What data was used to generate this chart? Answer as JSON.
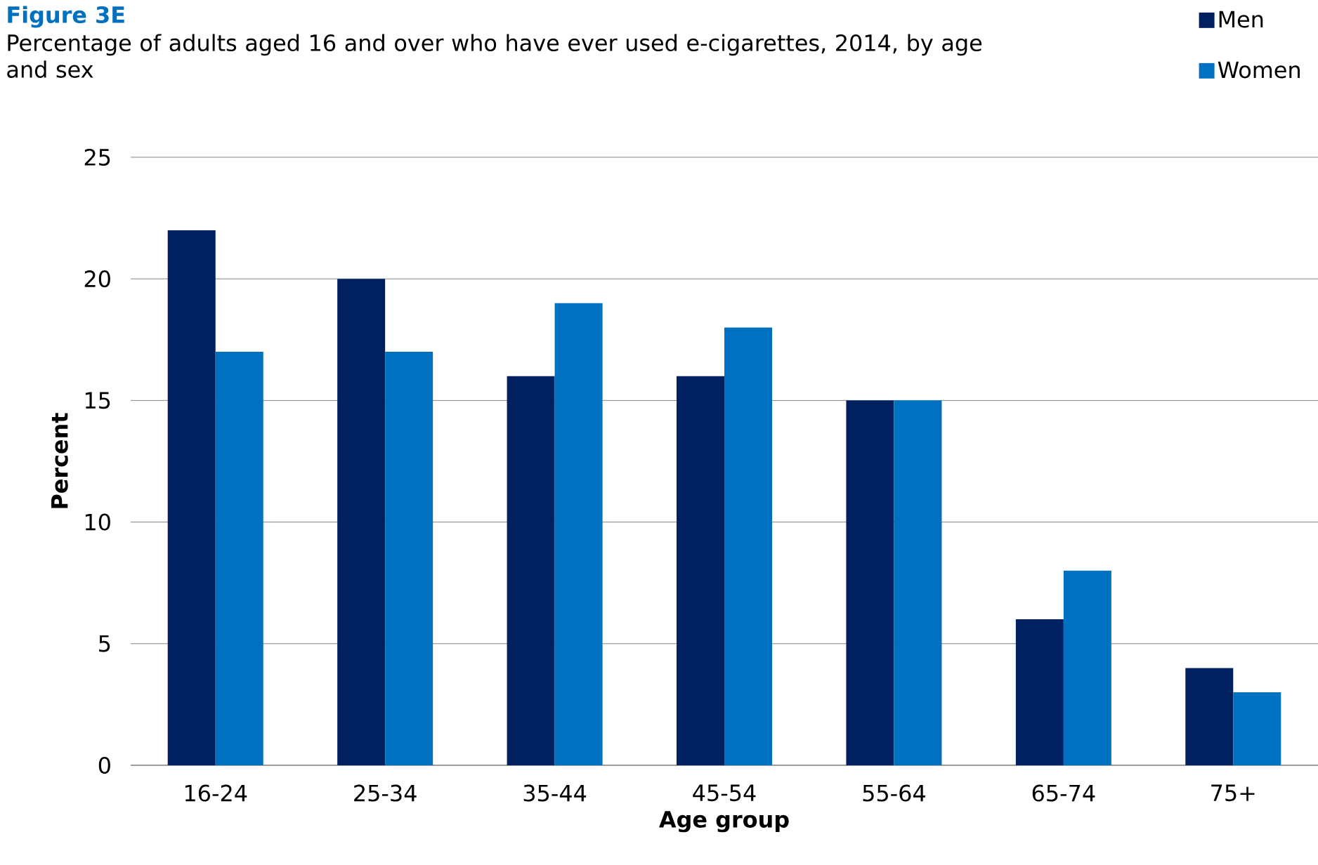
{
  "chart_data": {
    "type": "bar",
    "title": "Figure 3E",
    "subtitle": "Percentage of adults aged 16 and over who have ever used e-cigarettes, 2014, by age and sex",
    "xlabel": "Age group",
    "ylabel": "Percent",
    "categories": [
      "16-24",
      "25-34",
      "35-44",
      "45-54",
      "55-64",
      "65-74",
      "75+"
    ],
    "series": [
      {
        "name": "Men",
        "color": "#002060",
        "values": [
          22,
          20,
          16,
          16,
          15,
          6,
          4
        ]
      },
      {
        "name": "Women",
        "color": "#0070c0",
        "values": [
          17,
          17,
          19,
          18,
          15,
          8,
          3
        ]
      }
    ],
    "ylim": [
      0,
      25
    ],
    "yticks": [
      0,
      5,
      10,
      15,
      20,
      25
    ],
    "grid": "y",
    "legend": "top right"
  }
}
